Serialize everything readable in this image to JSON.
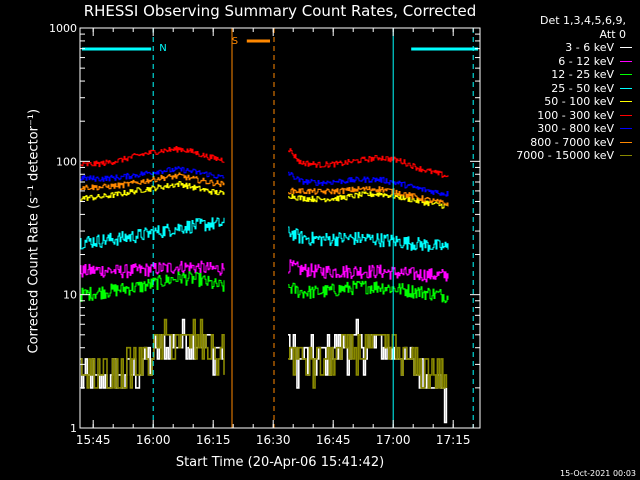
{
  "chart_data": {
    "type": "line",
    "title": "RHESSI Observing Summary Count Rates, Corrected",
    "xlabel": "Start Time (20-Apr-06 15:41:42)",
    "ylabel": "Corrected Count Rate (s⁻¹ detector⁻¹)",
    "yscale": "log",
    "ylim": [
      1,
      1000
    ],
    "xlim_minutes": [
      0,
      100
    ],
    "y_ticks": [
      {
        "value": 1,
        "label": "1"
      },
      {
        "value": 10,
        "label": "10"
      },
      {
        "value": 100,
        "label": "100"
      },
      {
        "value": 1000,
        "label": "1000"
      }
    ],
    "x_ticks": [
      {
        "t": 3.3,
        "label": "15:45"
      },
      {
        "t": 18.3,
        "label": "16:00"
      },
      {
        "t": 33.3,
        "label": "16:15"
      },
      {
        "t": 48.3,
        "label": "16:30"
      },
      {
        "t": 63.3,
        "label": "16:45"
      },
      {
        "t": 78.3,
        "label": "17:00"
      },
      {
        "t": 93.3,
        "label": "17:15"
      }
    ],
    "legend_header": [
      "Det 1,3,4,5,6,9,",
      "Att 0"
    ],
    "series": [
      {
        "name": "3 - 6 keV",
        "color": "#ffffff",
        "segments": [
          [
            [
              0,
              2.6
            ],
            [
              5,
              2.2
            ],
            [
              10,
              2.4
            ],
            [
              15,
              2.8
            ],
            [
              18,
              3.5
            ],
            [
              22,
              4.2
            ],
            [
              26,
              4.8
            ],
            [
              30,
              4.6
            ],
            [
              33,
              4.2
            ],
            [
              36,
              3.6
            ]
          ],
          [
            [
              52,
              3.8
            ],
            [
              55,
              3.2
            ],
            [
              60,
              3.5
            ],
            [
              65,
              4.0
            ],
            [
              70,
              4.3
            ],
            [
              75,
              4.2
            ],
            [
              80,
              3.5
            ],
            [
              85,
              2.6
            ],
            [
              90,
              2.0
            ],
            [
              92,
              1.6
            ]
          ]
        ]
      },
      {
        "name": "6 - 12 keV",
        "color": "#ff00ff",
        "segments": [
          [
            [
              0,
              15.0
            ],
            [
              5,
              15.3
            ],
            [
              10,
              15.0
            ],
            [
              15,
              15.3
            ],
            [
              20,
              15.8
            ],
            [
              25,
              16.2
            ],
            [
              30,
              16.0
            ],
            [
              33,
              15.6
            ],
            [
              36,
              15.8
            ]
          ],
          [
            [
              52,
              16.5
            ],
            [
              55,
              15.5
            ],
            [
              60,
              15.0
            ],
            [
              65,
              15.0
            ],
            [
              70,
              15.0
            ],
            [
              75,
              15.0
            ],
            [
              80,
              14.5
            ],
            [
              85,
              14.2
            ],
            [
              90,
              14.0
            ],
            [
              92,
              14.0
            ]
          ]
        ]
      },
      {
        "name": "12 - 25 keV",
        "color": "#00ff00",
        "segments": [
          [
            [
              0,
              10.0
            ],
            [
              5,
              10.5
            ],
            [
              10,
              11.0
            ],
            [
              15,
              11.5
            ],
            [
              20,
              12.5
            ],
            [
              25,
              13.5
            ],
            [
              30,
              13.0
            ],
            [
              33,
              12.0
            ],
            [
              36,
              11.5
            ]
          ],
          [
            [
              52,
              11.5
            ],
            [
              55,
              10.5
            ],
            [
              60,
              10.5
            ],
            [
              65,
              11.0
            ],
            [
              70,
              11.5
            ],
            [
              75,
              11.5
            ],
            [
              80,
              11.0
            ],
            [
              85,
              10.5
            ],
            [
              90,
              10.0
            ],
            [
              92,
              9.8
            ]
          ]
        ]
      },
      {
        "name": "25 - 50 keV",
        "color": "#00ffff",
        "segments": [
          [
            [
              0,
              25.0
            ],
            [
              5,
              25.5
            ],
            [
              10,
              26.5
            ],
            [
              15,
              28.0
            ],
            [
              20,
              30.0
            ],
            [
              25,
              32.0
            ],
            [
              30,
              33.5
            ],
            [
              33,
              34.0
            ],
            [
              36,
              34.0
            ]
          ],
          [
            [
              52,
              30.0
            ],
            [
              55,
              27.0
            ],
            [
              60,
              26.0
            ],
            [
              65,
              26.5
            ],
            [
              70,
              26.5
            ],
            [
              75,
              26.0
            ],
            [
              80,
              25.0
            ],
            [
              85,
              24.0
            ],
            [
              90,
              23.0
            ],
            [
              92,
              22.5
            ]
          ]
        ]
      },
      {
        "name": "50 - 100 keV",
        "color": "#ffff00",
        "segments": [
          [
            [
              0,
              53.0
            ],
            [
              5,
              54.0
            ],
            [
              10,
              57.0
            ],
            [
              15,
              61.0
            ],
            [
              20,
              64.0
            ],
            [
              25,
              68.0
            ],
            [
              28,
              64.0
            ],
            [
              32,
              60.0
            ],
            [
              36,
              57.0
            ]
          ],
          [
            [
              52,
              56.0
            ],
            [
              55,
              53.0
            ],
            [
              60,
              52.0
            ],
            [
              65,
              53.0
            ],
            [
              70,
              56.0
            ],
            [
              75,
              57.0
            ],
            [
              80,
              54.0
            ],
            [
              85,
              50.0
            ],
            [
              90,
              47.0
            ],
            [
              92,
              46.0
            ]
          ]
        ]
      },
      {
        "name": "100 - 300 keV",
        "color": "#ff0000",
        "segments": [
          [
            [
              0,
              94.0
            ],
            [
              5,
              96.0
            ],
            [
              10,
              102.0
            ],
            [
              15,
              112.0
            ],
            [
              20,
              120.0
            ],
            [
              25,
              124.0
            ],
            [
              28,
              118.0
            ],
            [
              32,
              108.0
            ],
            [
              36,
              102.0
            ]
          ],
          [
            [
              52,
              125.0
            ],
            [
              55,
              98.0
            ],
            [
              60,
              94.0
            ],
            [
              65,
              96.0
            ],
            [
              70,
              102.0
            ],
            [
              75,
              107.0
            ],
            [
              80,
              101.0
            ],
            [
              85,
              88.0
            ],
            [
              90,
              80.0
            ],
            [
              92,
              77.0
            ]
          ]
        ]
      },
      {
        "name": "300 - 800 keV",
        "color": "#0000ff",
        "segments": [
          [
            [
              0,
              75.0
            ],
            [
              5,
              74.0
            ],
            [
              10,
              76.0
            ],
            [
              15,
              80.0
            ],
            [
              20,
              85.0
            ],
            [
              25,
              87.0
            ],
            [
              28,
              84.0
            ],
            [
              32,
              80.0
            ],
            [
              36,
              75.0
            ]
          ],
          [
            [
              52,
              82.0
            ],
            [
              55,
              71.0
            ],
            [
              60,
              69.0
            ],
            [
              65,
              71.0
            ],
            [
              70,
              73.0
            ],
            [
              75,
              73.0
            ],
            [
              80,
              68.0
            ],
            [
              85,
              62.0
            ],
            [
              90,
              58.0
            ],
            [
              92,
              57.0
            ]
          ]
        ]
      },
      {
        "name": "800 - 7000 keV",
        "color": "#ff8800",
        "segments": [
          [
            [
              0,
              64.0
            ],
            [
              5,
              64.0
            ],
            [
              10,
              66.0
            ],
            [
              15,
              70.0
            ],
            [
              20,
              75.0
            ],
            [
              25,
              78.0
            ],
            [
              28,
              74.0
            ],
            [
              32,
              70.0
            ],
            [
              36,
              67.0
            ]
          ],
          [
            [
              52,
              60.0
            ],
            [
              55,
              60.0
            ],
            [
              60,
              59.0
            ],
            [
              65,
              60.0
            ],
            [
              70,
              62.0
            ],
            [
              75,
              62.0
            ],
            [
              80,
              58.0
            ],
            [
              85,
              53.0
            ],
            [
              90,
              49.0
            ],
            [
              92,
              48.0
            ]
          ]
        ]
      },
      {
        "name": "7000 - 15000 keV",
        "color": "#888800",
        "segments": [
          [
            [
              0,
              2.6
            ],
            [
              5,
              2.5
            ],
            [
              10,
              2.6
            ],
            [
              15,
              3.2
            ],
            [
              18,
              3.8
            ],
            [
              22,
              4.5
            ],
            [
              26,
              4.6
            ],
            [
              30,
              4.4
            ],
            [
              33,
              4.0
            ],
            [
              36,
              3.6
            ]
          ],
          [
            [
              52,
              3.6
            ],
            [
              55,
              3.0
            ],
            [
              60,
              3.0
            ],
            [
              65,
              3.6
            ],
            [
              70,
              4.2
            ],
            [
              75,
              4.2
            ],
            [
              80,
              3.4
            ],
            [
              85,
              2.8
            ],
            [
              90,
              2.6
            ],
            [
              92,
              2.4
            ]
          ]
        ]
      }
    ],
    "annotations": {
      "night_label": "N",
      "saa_label": "S",
      "night_intervals": [
        [
          0,
          18.3
        ],
        [
          82.3,
          100
        ]
      ],
      "saa_interval": [
        41.7,
        47.5
      ],
      "cyan_solid_lines": [
        0.0,
        78.3
      ],
      "cyan_dashed_lines": [
        18.3,
        98.3
      ],
      "orange_solid_lines": [
        38.0
      ],
      "orange_dashed_lines": [
        48.5
      ],
      "night_color": "#00ffff",
      "saa_color": "#ff8800"
    }
  },
  "timestamp": "15-Oct-2021 00:03"
}
